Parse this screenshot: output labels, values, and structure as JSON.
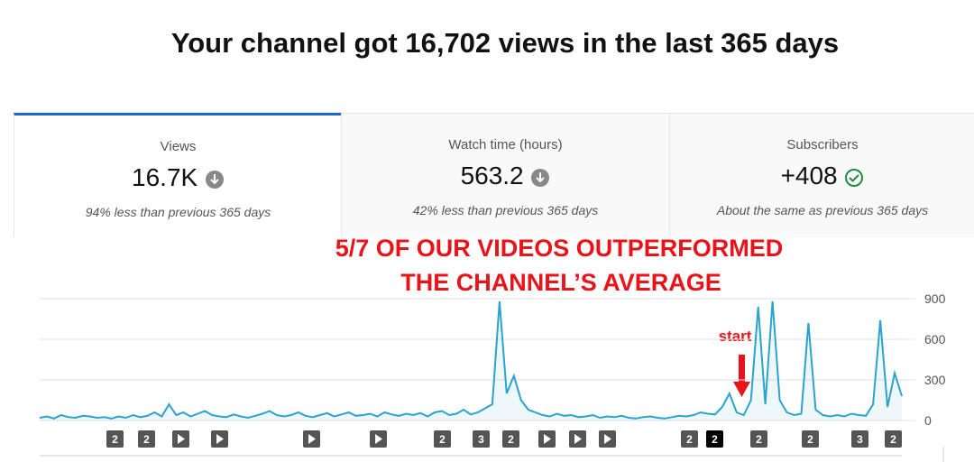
{
  "header": {
    "title": "Your channel got 16,702 views in the last 365 days"
  },
  "cards": [
    {
      "label": "Views",
      "value": "16.7K",
      "note": "94% less than previous 365 days"
    },
    {
      "label": "Watch time (hours)",
      "value": "563.2",
      "note": "42% less than previous 365 days"
    },
    {
      "label": "Subscribers",
      "value": "+408",
      "note": "About the same as previous 365 days"
    }
  ],
  "annotation": {
    "lines": [
      "5/7 OF OUR VIDEOS OUTPERFORMED",
      "THE CHANNEL’S AVERAGE"
    ],
    "start": "start"
  },
  "chart_data": {
    "type": "area",
    "color": "#2ba3cf",
    "ylim": [
      0,
      900
    ],
    "yticks": [
      0,
      300,
      600,
      900
    ],
    "grid": true,
    "categories": [
      null,
      null,
      null,
      null,
      null,
      null,
      null,
      null,
      null,
      null,
      null,
      null,
      null,
      null,
      null,
      null,
      null,
      null,
      null,
      null,
      null,
      null,
      null,
      null,
      null,
      null,
      null,
      null,
      null,
      null,
      null,
      null,
      null,
      null,
      null,
      null,
      null,
      null,
      null,
      null,
      null,
      null,
      null,
      null,
      null,
      null,
      null,
      null,
      null,
      null,
      null,
      null,
      null,
      null,
      null,
      null,
      null,
      null,
      null,
      null,
      null,
      null,
      null,
      null,
      null,
      null,
      null,
      null,
      null,
      null,
      null,
      null,
      null,
      null,
      null,
      null,
      null,
      null,
      null,
      null,
      null,
      null,
      null,
      null,
      null,
      null,
      null,
      null,
      null,
      null,
      null,
      null,
      null,
      null,
      null,
      null,
      null,
      null,
      null,
      null,
      null,
      null,
      null,
      null,
      null,
      null,
      null,
      null,
      null,
      null,
      null,
      null,
      null,
      null,
      null,
      null,
      null,
      null,
      null,
      null,
      null
    ],
    "values": [
      20,
      30,
      15,
      40,
      25,
      20,
      35,
      30,
      20,
      25,
      15,
      30,
      20,
      40,
      25,
      35,
      60,
      30,
      120,
      40,
      60,
      30,
      50,
      70,
      40,
      30,
      25,
      45,
      30,
      20,
      35,
      50,
      70,
      40,
      30,
      40,
      60,
      35,
      25,
      40,
      55,
      30,
      45,
      60,
      35,
      40,
      50,
      30,
      60,
      45,
      35,
      50,
      40,
      55,
      30,
      60,
      70,
      40,
      50,
      80,
      45,
      60,
      90,
      120,
      880,
      200,
      330,
      150,
      80,
      60,
      40,
      30,
      50,
      35,
      40,
      25,
      30,
      40,
      20,
      30,
      25,
      35,
      20,
      15,
      25,
      30,
      20,
      15,
      25,
      35,
      30,
      40,
      60,
      50,
      45,
      100,
      200,
      60,
      40,
      150,
      840,
      120,
      880,
      150,
      60,
      40,
      50,
      720,
      80,
      40,
      30,
      40,
      30,
      50,
      40,
      35,
      120,
      740,
      100,
      350,
      180
    ],
    "markers": [
      "2",
      "2",
      "2",
      "3",
      "2",
      "2",
      "2",
      "2",
      "2",
      "3",
      "2"
    ]
  }
}
